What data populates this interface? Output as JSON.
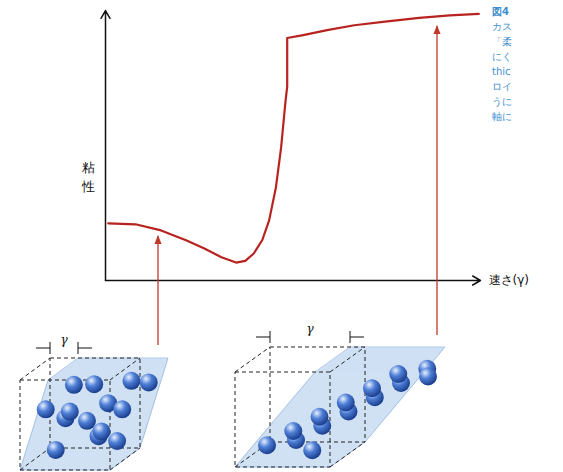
{
  "chart_data": {
    "type": "line",
    "x": [
      0.08,
      0.88,
      1.63,
      2.38,
      2.9,
      3.4,
      3.83,
      4.1,
      4.35,
      4.6,
      4.8,
      5.0,
      5.15,
      5.28,
      5.33,
      5.33,
      5.8,
      6.5,
      7.3,
      8.2,
      9.2,
      10.1,
      10.95
    ],
    "values": [
      2.33,
      2.29,
      2.04,
      1.63,
      1.3,
      0.95,
      0.73,
      0.8,
      1.1,
      1.65,
      2.45,
      3.8,
      5.4,
      7.3,
      7.9,
      9.88,
      10.0,
      10.2,
      10.4,
      10.55,
      10.7,
      10.8,
      10.86
    ],
    "xlim": [
      0,
      11
    ],
    "ylim": [
      0,
      11
    ],
    "xticks": [],
    "yticks": [],
    "xlabel": "速さ(γ)",
    "ylabel": "粘性",
    "color": "#b8231f",
    "tick_labels": false,
    "annotations": [
      "図4",
      "カス",
      "「柔",
      "にく",
      "thic",
      "ロイ",
      "うに",
      "軸に"
    ]
  },
  "diagram": {
    "panels": [
      {
        "shear_label": "γ"
      },
      {
        "shear_label": "γ"
      }
    ]
  }
}
